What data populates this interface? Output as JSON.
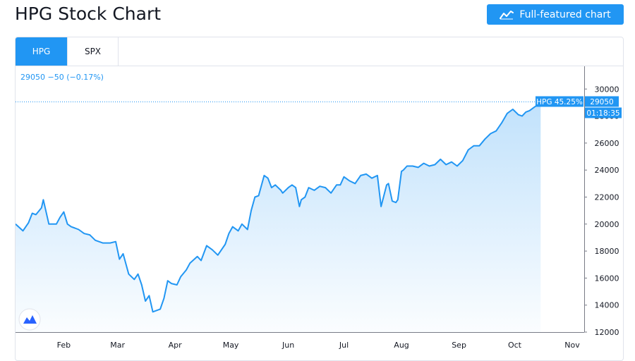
{
  "header": {
    "title": "HPG Stock Chart",
    "button_label": "Full-featured chart",
    "button_icon": "chart-line-icon"
  },
  "tabs": [
    {
      "label": "HPG",
      "active": true
    },
    {
      "label": "SPX",
      "active": false
    }
  ],
  "colors": {
    "accent": "#2196f3",
    "line": "#2196f3",
    "axis_text": "#131722",
    "price_label_bg": "#2196f3"
  },
  "chart_data": {
    "type": "area",
    "symbol": "HPG",
    "legend": {
      "text": "29050 −50 (−0.17%)"
    },
    "last_price_label": "HPG 45.25%",
    "last_price_value": "29050",
    "countdown": "01:18:35",
    "ylim": [
      12000,
      31000
    ],
    "y_ticks": [
      12000,
      14000,
      16000,
      18000,
      20000,
      22000,
      24000,
      26000,
      28000,
      30000
    ],
    "y_tick_labels": [
      "12000",
      "14000",
      "16000",
      "18000",
      "20000",
      "22000",
      "24000",
      "26000",
      "28000",
      "30000"
    ],
    "x_start": "2020-01-06",
    "x_end": "2020-11-05",
    "x_ticks": [
      {
        "label": "Feb",
        "date": "2020-02-01"
      },
      {
        "label": "Mar",
        "date": "2020-03-01"
      },
      {
        "label": "Apr",
        "date": "2020-04-01"
      },
      {
        "label": "May",
        "date": "2020-05-01"
      },
      {
        "label": "Jun",
        "date": "2020-06-01"
      },
      {
        "label": "Jul",
        "date": "2020-07-01"
      },
      {
        "label": "Aug",
        "date": "2020-08-01"
      },
      {
        "label": "Sep",
        "date": "2020-09-01"
      },
      {
        "label": "Oct",
        "date": "2020-10-01"
      },
      {
        "label": "Nov",
        "date": "2020-11-01"
      }
    ],
    "series": [
      {
        "x": [
          "2020-01-06",
          "2020-01-10",
          "2020-01-13",
          "2020-01-15",
          "2020-01-17",
          "2020-01-20",
          "2020-01-21",
          "2020-01-24",
          "2020-01-28",
          "2020-01-30",
          "2020-02-01",
          "2020-02-03",
          "2020-02-05",
          "2020-02-07",
          "2020-02-09",
          "2020-02-12",
          "2020-02-15",
          "2020-02-18",
          "2020-02-22",
          "2020-02-26",
          "2020-02-29",
          "2020-03-02",
          "2020-03-04",
          "2020-03-07",
          "2020-03-10",
          "2020-03-12",
          "2020-03-14",
          "2020-03-16",
          "2020-03-18",
          "2020-03-20",
          "2020-03-24",
          "2020-03-26",
          "2020-03-28",
          "2020-03-30",
          "2020-04-02",
          "2020-04-04",
          "2020-04-07",
          "2020-04-09",
          "2020-04-13",
          "2020-04-15",
          "2020-04-18",
          "2020-04-21",
          "2020-04-24",
          "2020-04-28",
          "2020-04-30",
          "2020-05-02",
          "2020-05-05",
          "2020-05-07",
          "2020-05-10",
          "2020-05-12",
          "2020-05-14",
          "2020-05-16",
          "2020-05-19",
          "2020-05-21",
          "2020-05-23",
          "2020-05-25",
          "2020-05-28",
          "2020-05-29",
          "2020-06-01",
          "2020-06-03",
          "2020-06-05",
          "2020-06-07",
          "2020-06-08",
          "2020-06-10",
          "2020-06-12",
          "2020-06-15",
          "2020-06-18",
          "2020-06-21",
          "2020-06-24",
          "2020-06-27",
          "2020-06-29",
          "2020-07-01",
          "2020-07-04",
          "2020-07-07",
          "2020-07-10",
          "2020-07-13",
          "2020-07-16",
          "2020-07-19",
          "2020-07-21",
          "2020-07-24",
          "2020-07-25",
          "2020-07-27",
          "2020-07-29",
          "2020-07-30",
          "2020-08-01",
          "2020-08-02",
          "2020-08-04",
          "2020-08-07",
          "2020-08-10",
          "2020-08-13",
          "2020-08-16",
          "2020-08-19",
          "2020-08-22",
          "2020-08-25",
          "2020-08-28",
          "2020-08-31",
          "2020-09-03",
          "2020-09-06",
          "2020-09-09",
          "2020-09-12",
          "2020-09-15",
          "2020-09-18",
          "2020-09-21",
          "2020-09-24",
          "2020-09-27",
          "2020-09-30",
          "2020-10-03",
          "2020-10-05",
          "2020-10-07",
          "2020-10-09",
          "2020-10-11",
          "2020-10-13",
          "2020-10-15"
        ],
        "values": [
          20000,
          19500,
          20100,
          20800,
          20700,
          21200,
          21800,
          20000,
          20000,
          20500,
          20900,
          20000,
          19800,
          19700,
          19600,
          19300,
          19200,
          18800,
          18600,
          18600,
          18700,
          17400,
          17800,
          16300,
          15900,
          16300,
          15500,
          14300,
          14700,
          13500,
          13700,
          14500,
          15800,
          15600,
          15500,
          16100,
          16600,
          17100,
          17600,
          17300,
          18400,
          18100,
          17700,
          18500,
          19300,
          19800,
          19500,
          20000,
          19600,
          21000,
          22000,
          22100,
          23600,
          23400,
          22700,
          22900,
          22500,
          22300,
          22700,
          22900,
          22700,
          21300,
          21800,
          22000,
          22700,
          22500,
          22800,
          22700,
          22300,
          22900,
          22900,
          23500,
          23200,
          23000,
          23600,
          23700,
          23400,
          23600,
          21300,
          22900,
          23000,
          21700,
          21600,
          21800,
          23900,
          24000,
          24300,
          24300,
          24200,
          24500,
          24300,
          24400,
          24800,
          24400,
          24600,
          24300,
          24700,
          25500,
          25800,
          25800,
          26300,
          26700,
          26900,
          27500,
          28200,
          28500,
          28100,
          28000,
          28300,
          28400,
          28600,
          28800,
          29050
        ]
      }
    ]
  }
}
